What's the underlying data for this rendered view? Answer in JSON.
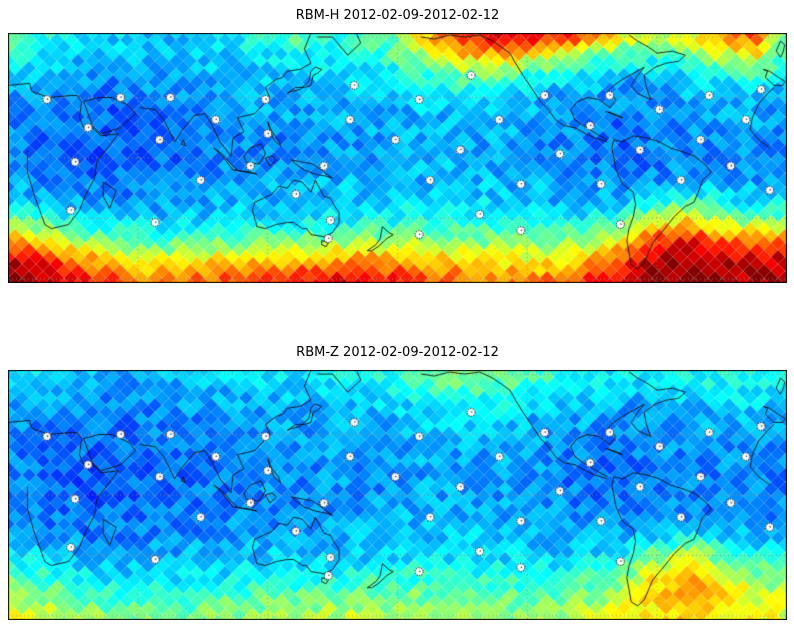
{
  "figure": {
    "background": "#ffffff"
  },
  "chart_data": [
    {
      "type": "heatmap",
      "title": "RBM-H 2012-02-09-2012-02-12",
      "projection": "equirectangular",
      "lon_range": [
        0,
        360
      ],
      "lat_range": [
        -62,
        62
      ],
      "grid_lon_start": 0,
      "grid_lon_step": 15,
      "grid_lat_start": 60,
      "grid_lat_step": -10,
      "colormap": "jet",
      "cell_shape": "diamond",
      "gridlines": {
        "lon_step_deg": 60,
        "lat_step_deg": 30,
        "style": "dotted"
      },
      "values_normalized": [
        [
          0.48,
          0.42,
          0.38,
          0.35,
          0.33,
          0.32,
          0.35,
          0.38,
          0.42,
          0.45,
          0.42,
          0.45,
          0.5,
          0.7,
          0.85,
          0.9,
          0.88,
          0.85,
          0.75,
          0.6,
          0.55,
          0.6,
          0.72,
          0.8
        ],
        [
          0.4,
          0.36,
          0.33,
          0.3,
          0.3,
          0.3,
          0.32,
          0.33,
          0.36,
          0.38,
          0.38,
          0.4,
          0.45,
          0.55,
          0.65,
          0.68,
          0.62,
          0.55,
          0.48,
          0.42,
          0.42,
          0.45,
          0.55,
          0.62
        ],
        [
          0.33,
          0.3,
          0.29,
          0.27,
          0.27,
          0.28,
          0.3,
          0.3,
          0.32,
          0.33,
          0.34,
          0.35,
          0.36,
          0.42,
          0.46,
          0.45,
          0.4,
          0.36,
          0.33,
          0.3,
          0.32,
          0.34,
          0.38,
          0.42
        ],
        [
          0.29,
          0.27,
          0.26,
          0.24,
          0.25,
          0.26,
          0.27,
          0.29,
          0.3,
          0.3,
          0.31,
          0.31,
          0.32,
          0.34,
          0.35,
          0.33,
          0.31,
          0.29,
          0.28,
          0.27,
          0.28,
          0.3,
          0.31,
          0.32
        ],
        [
          0.27,
          0.24,
          0.23,
          0.22,
          0.23,
          0.24,
          0.26,
          0.27,
          0.28,
          0.29,
          0.29,
          0.3,
          0.3,
          0.31,
          0.31,
          0.3,
          0.29,
          0.27,
          0.26,
          0.24,
          0.26,
          0.28,
          0.29,
          0.29
        ],
        [
          0.26,
          0.23,
          0.22,
          0.21,
          0.22,
          0.23,
          0.24,
          0.26,
          0.26,
          0.27,
          0.28,
          0.28,
          0.29,
          0.3,
          0.3,
          0.29,
          0.28,
          0.26,
          0.24,
          0.23,
          0.24,
          0.26,
          0.26,
          0.26
        ],
        [
          0.26,
          0.24,
          0.22,
          0.21,
          0.22,
          0.23,
          0.25,
          0.26,
          0.26,
          0.27,
          0.28,
          0.28,
          0.29,
          0.3,
          0.3,
          0.29,
          0.28,
          0.26,
          0.25,
          0.23,
          0.25,
          0.26,
          0.27,
          0.26
        ],
        [
          0.28,
          0.26,
          0.24,
          0.23,
          0.24,
          0.25,
          0.26,
          0.28,
          0.28,
          0.29,
          0.3,
          0.3,
          0.3,
          0.31,
          0.32,
          0.3,
          0.3,
          0.28,
          0.26,
          0.25,
          0.26,
          0.28,
          0.28,
          0.28
        ],
        [
          0.32,
          0.3,
          0.28,
          0.26,
          0.27,
          0.28,
          0.29,
          0.3,
          0.3,
          0.31,
          0.32,
          0.32,
          0.33,
          0.34,
          0.34,
          0.33,
          0.31,
          0.3,
          0.3,
          0.31,
          0.36,
          0.4,
          0.36,
          0.33
        ],
        [
          0.48,
          0.42,
          0.37,
          0.33,
          0.32,
          0.32,
          0.33,
          0.34,
          0.35,
          0.36,
          0.36,
          0.37,
          0.38,
          0.39,
          0.4,
          0.38,
          0.36,
          0.36,
          0.37,
          0.42,
          0.56,
          0.62,
          0.52,
          0.48
        ],
        [
          0.72,
          0.62,
          0.52,
          0.46,
          0.44,
          0.43,
          0.44,
          0.46,
          0.47,
          0.48,
          0.48,
          0.5,
          0.51,
          0.51,
          0.5,
          0.48,
          0.47,
          0.48,
          0.52,
          0.62,
          0.82,
          0.88,
          0.78,
          0.72
        ],
        [
          0.93,
          0.86,
          0.76,
          0.66,
          0.62,
          0.6,
          0.62,
          0.64,
          0.66,
          0.68,
          0.7,
          0.72,
          0.7,
          0.68,
          0.66,
          0.63,
          0.62,
          0.64,
          0.72,
          0.82,
          0.95,
          0.97,
          0.93,
          0.9
        ],
        [
          0.98,
          0.95,
          0.88,
          0.82,
          0.76,
          0.74,
          0.77,
          0.8,
          0.83,
          0.87,
          0.9,
          0.88,
          0.84,
          0.8,
          0.78,
          0.75,
          0.74,
          0.78,
          0.86,
          0.92,
          0.97,
          0.99,
          0.97,
          0.96
        ]
      ],
      "markers_lonlat": [
        [
          18,
          29
        ],
        [
          37,
          15
        ],
        [
          52,
          30
        ],
        [
          31,
          -2
        ],
        [
          29,
          -26
        ],
        [
          70,
          9
        ],
        [
          75,
          30
        ],
        [
          68,
          -32
        ],
        [
          89,
          -11
        ],
        [
          96,
          19
        ],
        [
          112,
          -4
        ],
        [
          119,
          29
        ],
        [
          120,
          12
        ],
        [
          133,
          -18
        ],
        [
          146,
          -4
        ],
        [
          149,
          -31
        ],
        [
          148,
          -40
        ],
        [
          158,
          19
        ],
        [
          160,
          36
        ],
        [
          179,
          9
        ],
        [
          190,
          29
        ],
        [
          195,
          -11
        ],
        [
          190,
          -38
        ],
        [
          209,
          4
        ],
        [
          214,
          41
        ],
        [
          218,
          -28
        ],
        [
          227,
          19
        ],
        [
          237,
          -13
        ],
        [
          237,
          -36
        ],
        [
          248,
          31
        ],
        [
          255,
          2
        ],
        [
          269,
          16
        ],
        [
          274,
          -13
        ],
        [
          278,
          31
        ],
        [
          283,
          -33
        ],
        [
          292,
          4
        ],
        [
          301,
          24
        ],
        [
          311,
          -11
        ],
        [
          320,
          9
        ],
        [
          324,
          31
        ],
        [
          334,
          -4
        ],
        [
          341,
          19
        ],
        [
          348,
          34
        ],
        [
          352,
          -16
        ]
      ]
    },
    {
      "type": "heatmap",
      "title": "RBM-Z 2012-02-09-2012-02-12",
      "projection": "equirectangular",
      "lon_range": [
        0,
        360
      ],
      "lat_range": [
        -62,
        62
      ],
      "grid_lon_start": 0,
      "grid_lon_step": 15,
      "grid_lat_start": 60,
      "grid_lat_step": -10,
      "colormap": "jet",
      "cell_shape": "diamond",
      "gridlines": {
        "lon_step_deg": 60,
        "lat_step_deg": 30,
        "style": "dotted"
      },
      "values_normalized": [
        [
          0.38,
          0.34,
          0.32,
          0.3,
          0.3,
          0.31,
          0.32,
          0.33,
          0.35,
          0.36,
          0.36,
          0.38,
          0.42,
          0.46,
          0.5,
          0.5,
          0.46,
          0.42,
          0.38,
          0.36,
          0.36,
          0.38,
          0.42,
          0.42
        ],
        [
          0.32,
          0.3,
          0.29,
          0.27,
          0.27,
          0.28,
          0.29,
          0.3,
          0.31,
          0.32,
          0.33,
          0.35,
          0.37,
          0.4,
          0.42,
          0.41,
          0.38,
          0.35,
          0.32,
          0.3,
          0.31,
          0.33,
          0.35,
          0.36
        ],
        [
          0.29,
          0.27,
          0.26,
          0.25,
          0.25,
          0.26,
          0.27,
          0.28,
          0.29,
          0.3,
          0.3,
          0.31,
          0.32,
          0.34,
          0.35,
          0.34,
          0.32,
          0.3,
          0.29,
          0.28,
          0.29,
          0.3,
          0.31,
          0.31
        ],
        [
          0.27,
          0.25,
          0.24,
          0.23,
          0.24,
          0.25,
          0.26,
          0.27,
          0.28,
          0.28,
          0.29,
          0.29,
          0.3,
          0.31,
          0.31,
          0.3,
          0.29,
          0.28,
          0.27,
          0.26,
          0.27,
          0.28,
          0.29,
          0.29
        ],
        [
          0.26,
          0.24,
          0.23,
          0.22,
          0.23,
          0.24,
          0.25,
          0.26,
          0.27,
          0.27,
          0.28,
          0.28,
          0.29,
          0.29,
          0.3,
          0.29,
          0.28,
          0.26,
          0.25,
          0.24,
          0.25,
          0.27,
          0.27,
          0.27
        ],
        [
          0.25,
          0.23,
          0.22,
          0.21,
          0.22,
          0.23,
          0.24,
          0.25,
          0.26,
          0.26,
          0.27,
          0.27,
          0.28,
          0.29,
          0.29,
          0.28,
          0.27,
          0.25,
          0.24,
          0.23,
          0.24,
          0.25,
          0.26,
          0.26
        ],
        [
          0.25,
          0.23,
          0.22,
          0.21,
          0.22,
          0.23,
          0.24,
          0.25,
          0.26,
          0.26,
          0.27,
          0.27,
          0.28,
          0.29,
          0.29,
          0.28,
          0.27,
          0.26,
          0.24,
          0.23,
          0.24,
          0.25,
          0.26,
          0.26
        ],
        [
          0.27,
          0.25,
          0.24,
          0.23,
          0.23,
          0.24,
          0.25,
          0.26,
          0.27,
          0.27,
          0.28,
          0.28,
          0.29,
          0.3,
          0.3,
          0.29,
          0.28,
          0.27,
          0.26,
          0.25,
          0.26,
          0.27,
          0.27,
          0.27
        ],
        [
          0.29,
          0.27,
          0.26,
          0.25,
          0.25,
          0.26,
          0.27,
          0.28,
          0.29,
          0.29,
          0.3,
          0.3,
          0.31,
          0.31,
          0.32,
          0.31,
          0.3,
          0.29,
          0.28,
          0.29,
          0.33,
          0.36,
          0.33,
          0.3
        ],
        [
          0.36,
          0.33,
          0.31,
          0.29,
          0.29,
          0.3,
          0.3,
          0.31,
          0.32,
          0.32,
          0.33,
          0.33,
          0.34,
          0.35,
          0.35,
          0.34,
          0.33,
          0.33,
          0.35,
          0.4,
          0.5,
          0.56,
          0.46,
          0.4
        ],
        [
          0.46,
          0.42,
          0.38,
          0.35,
          0.34,
          0.34,
          0.35,
          0.36,
          0.38,
          0.38,
          0.39,
          0.4,
          0.41,
          0.41,
          0.42,
          0.4,
          0.39,
          0.4,
          0.44,
          0.5,
          0.64,
          0.7,
          0.6,
          0.52
        ],
        [
          0.56,
          0.52,
          0.47,
          0.43,
          0.41,
          0.41,
          0.43,
          0.45,
          0.46,
          0.46,
          0.48,
          0.5,
          0.5,
          0.48,
          0.46,
          0.46,
          0.46,
          0.48,
          0.52,
          0.58,
          0.7,
          0.74,
          0.66,
          0.6
        ],
        [
          0.6,
          0.58,
          0.54,
          0.5,
          0.49,
          0.49,
          0.5,
          0.52,
          0.53,
          0.55,
          0.56,
          0.55,
          0.53,
          0.51,
          0.5,
          0.5,
          0.51,
          0.53,
          0.56,
          0.6,
          0.66,
          0.68,
          0.64,
          0.62
        ]
      ],
      "markers_lonlat": [
        [
          18,
          29
        ],
        [
          37,
          15
        ],
        [
          52,
          30
        ],
        [
          31,
          -2
        ],
        [
          29,
          -26
        ],
        [
          70,
          9
        ],
        [
          75,
          30
        ],
        [
          68,
          -32
        ],
        [
          89,
          -11
        ],
        [
          96,
          19
        ],
        [
          112,
          -4
        ],
        [
          119,
          29
        ],
        [
          120,
          12
        ],
        [
          133,
          -18
        ],
        [
          146,
          -4
        ],
        [
          149,
          -31
        ],
        [
          148,
          -40
        ],
        [
          158,
          19
        ],
        [
          160,
          36
        ],
        [
          179,
          9
        ],
        [
          190,
          29
        ],
        [
          195,
          -11
        ],
        [
          190,
          -38
        ],
        [
          209,
          4
        ],
        [
          214,
          41
        ],
        [
          218,
          -28
        ],
        [
          227,
          19
        ],
        [
          237,
          -13
        ],
        [
          237,
          -36
        ],
        [
          248,
          31
        ],
        [
          255,
          2
        ],
        [
          269,
          16
        ],
        [
          274,
          -13
        ],
        [
          278,
          31
        ],
        [
          283,
          -33
        ],
        [
          292,
          4
        ],
        [
          301,
          24
        ],
        [
          311,
          -11
        ],
        [
          320,
          9
        ],
        [
          324,
          31
        ],
        [
          334,
          -4
        ],
        [
          341,
          19
        ],
        [
          348,
          34
        ],
        [
          352,
          -16
        ]
      ]
    }
  ]
}
